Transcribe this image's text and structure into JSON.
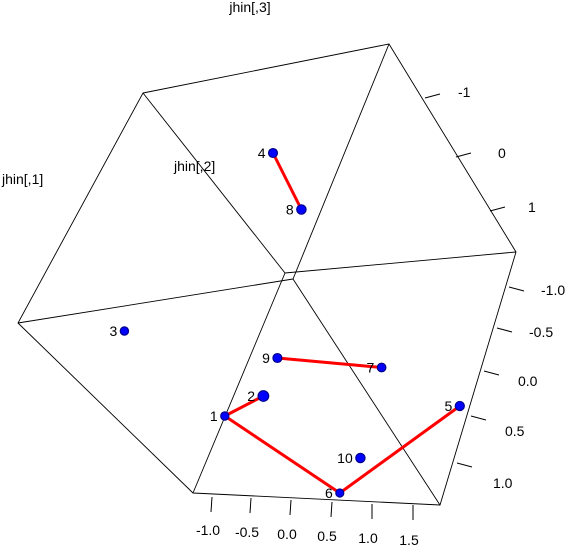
{
  "chart_data": {
    "type": "scatter",
    "projection": "3d",
    "axis_labels": {
      "x": "jhin[,1]",
      "y": "jhin[,2]",
      "z": "jhin[,3]"
    },
    "ticks": {
      "bottom": [
        "-1.0",
        "-0.5",
        "0.0",
        "0.5",
        "1.0",
        "1.5"
      ],
      "right": [
        "-1.0",
        "-0.5",
        "0.0",
        "0.5",
        "1.0"
      ],
      "top_right": [
        "-1",
        "0",
        "1"
      ]
    },
    "points": [
      {
        "label": "1",
        "x": -0.9,
        "y": 0.45,
        "z": 0.2
      },
      {
        "label": "2",
        "x": -0.7,
        "y": -0.9,
        "z": 0.55
      },
      {
        "label": "3",
        "x": -1.7,
        "y": 0.4,
        "z": -0.3
      },
      {
        "label": "4",
        "x": 0.5,
        "y": 0.05,
        "z": -1.05
      },
      {
        "label": "5",
        "x": 1.6,
        "y": -0.05,
        "z": 0.45
      },
      {
        "label": "6",
        "x": 0.1,
        "y": 0.55,
        "z": 0.65
      },
      {
        "label": "7",
        "x": 0.95,
        "y": 0.25,
        "z": 0.1
      },
      {
        "label": "8",
        "x": 0.55,
        "y": -0.2,
        "z": -0.65
      },
      {
        "label": "9",
        "x": -0.2,
        "y": 0.05,
        "z": 0.05
      },
      {
        "label": "10",
        "x": 0.3,
        "y": -0.15,
        "z": 0.7
      }
    ],
    "segments": [
      [
        "4",
        "8"
      ],
      [
        "9",
        "7"
      ],
      [
        "2",
        "1"
      ],
      [
        "1",
        "6"
      ],
      [
        "6",
        "5"
      ]
    ],
    "point_color": "#0000ff",
    "point_edge_color": "#00008b",
    "line_color": "#ff0000"
  }
}
